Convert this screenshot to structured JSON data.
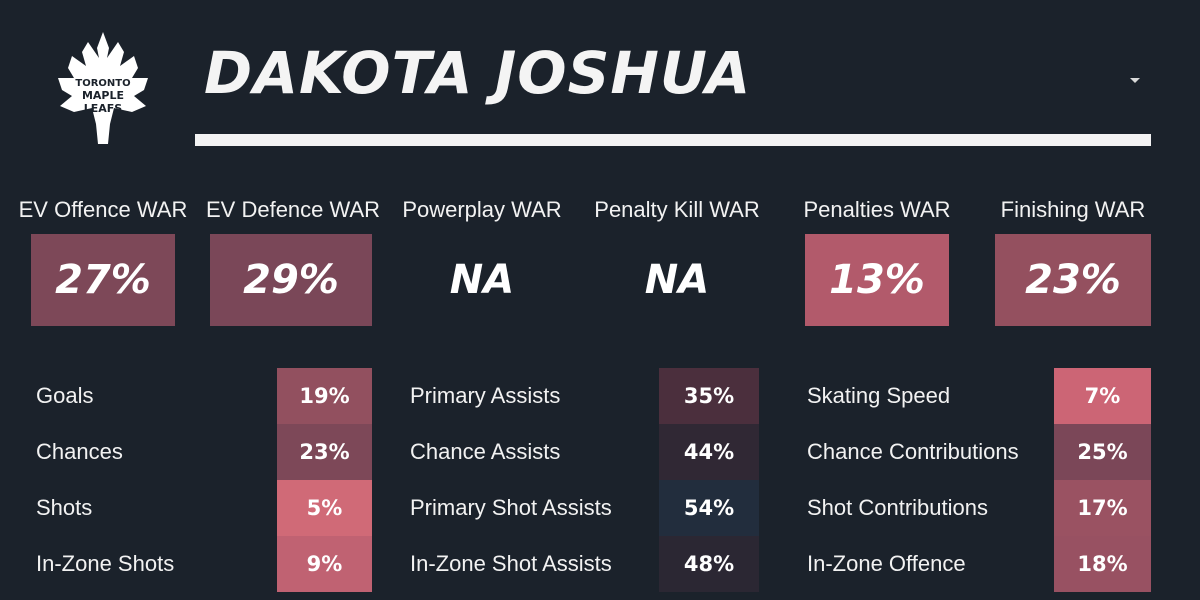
{
  "logo": {
    "line1": "TORONTO",
    "line2": "MAPLE",
    "line3": "LEAFS"
  },
  "player_name": "DAKOTA JOSHUA",
  "war": [
    {
      "label": "EV Offence WAR",
      "value": "27%",
      "color": "#7d4858"
    },
    {
      "label": "EV Defence WAR",
      "value": "29%",
      "color": "#7a4758"
    },
    {
      "label": "Powerplay WAR",
      "value": "NA",
      "color": "transparent"
    },
    {
      "label": "Penalty Kill WAR",
      "value": "NA",
      "color": "transparent"
    },
    {
      "label": "Penalties WAR",
      "value": "13%",
      "color": "#b25a6b"
    },
    {
      "label": "Finishing WAR",
      "value": "23%",
      "color": "#94505f"
    }
  ],
  "stats": [
    {
      "rows": [
        {
          "label": "Goals",
          "value": "19%",
          "color": "#92505f"
        },
        {
          "label": "Chances",
          "value": "23%",
          "color": "#7d4858"
        },
        {
          "label": "Shots",
          "value": "5%",
          "color": "#d06a77"
        },
        {
          "label": "In-Zone Shots",
          "value": "9%",
          "color": "#c06272"
        }
      ]
    },
    {
      "rows": [
        {
          "label": "Primary Assists",
          "value": "35%",
          "color": "#4b2f3d"
        },
        {
          "label": "Chance Assists",
          "value": "44%",
          "color": "#302834"
        },
        {
          "label": "Primary Shot Assists",
          "value": "54%",
          "color": "#222d3d"
        },
        {
          "label": "In-Zone Shot Assists",
          "value": "48%",
          "color": "#2b2733"
        }
      ]
    },
    {
      "rows": [
        {
          "label": "Skating Speed",
          "value": "7%",
          "color": "#cc6575"
        },
        {
          "label": "Chance Contributions",
          "value": "25%",
          "color": "#7b4758"
        },
        {
          "label": "Shot Contributions",
          "value": "17%",
          "color": "#9a5262"
        },
        {
          "label": "In-Zone Offence",
          "value": "18%",
          "color": "#985162"
        }
      ]
    }
  ]
}
